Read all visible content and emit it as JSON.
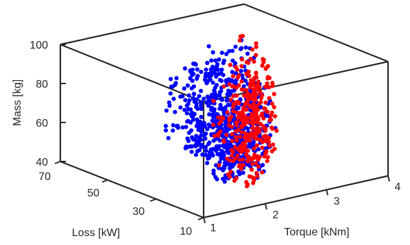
{
  "chart_data": {
    "type": "scatter",
    "title": "",
    "xlabel": "Torque [kNm]",
    "ylabel": "Loss [kW]",
    "zlabel": "Mass [kg]",
    "xlim": [
      1,
      4
    ],
    "ylim": [
      10,
      70
    ],
    "zlim": [
      40,
      100
    ],
    "x_ticks": [
      "1",
      "2",
      "3",
      "4"
    ],
    "y_ticks": [
      "10",
      "30",
      "50",
      "70"
    ],
    "z_ticks": [
      "40",
      "60",
      "80",
      "100"
    ],
    "grid": false,
    "legend": "none",
    "series_colors": [
      "#0000ff",
      "#ff0000"
    ]
  }
}
